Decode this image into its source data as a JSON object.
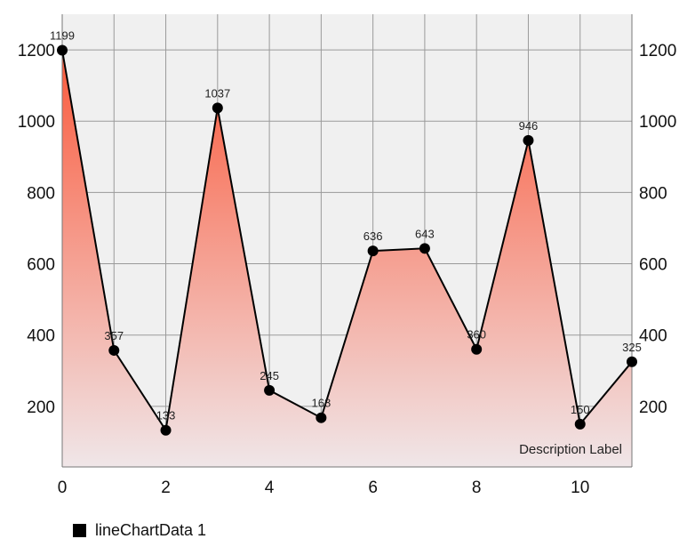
{
  "chart_data": {
    "type": "line",
    "x": [
      0,
      1,
      2,
      3,
      4,
      5,
      6,
      7,
      8,
      9,
      10,
      11
    ],
    "series": [
      {
        "name": "lineChartData 1",
        "values": [
          1199,
          357,
          133,
          1037,
          245,
          168,
          636,
          643,
          360,
          946,
          150,
          325
        ],
        "data_labels": [
          "1199",
          "357",
          "133",
          "1037",
          "245",
          "168",
          "636",
          "643",
          "360",
          "946",
          "150",
          "325"
        ]
      }
    ],
    "xlim": [
      0,
      11
    ],
    "ylim": [
      30,
      1300
    ],
    "x_ticks": [
      0,
      2,
      4,
      6,
      8,
      10
    ],
    "x_tick_labels": [
      "0",
      "2",
      "4",
      "6",
      "8",
      "10"
    ],
    "y_ticks": [
      200,
      400,
      600,
      800,
      1000,
      1200
    ],
    "y_tick_labels": [
      "200",
      "400",
      "600",
      "800",
      "1000",
      "1200"
    ],
    "right_axis": true,
    "description": "Description Label",
    "grid": true,
    "legend_position": "bottom-left",
    "colors": {
      "line": "#000000",
      "marker": "#000000",
      "fill_top": "#fa5a3c",
      "fill_bottom": "#f0e6e8",
      "plot_background": "#f0f0f0",
      "grid": "#9a9a9a"
    }
  }
}
